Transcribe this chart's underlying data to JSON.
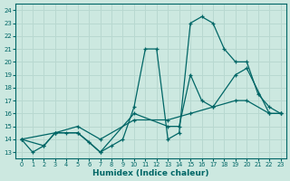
{
  "xlabel": "Humidex (Indice chaleur)",
  "ylabel": "",
  "bg_color": "#cce8e0",
  "line_color": "#006666",
  "grid_color": "#b8d8d0",
  "xlim": [
    -0.5,
    23.5
  ],
  "ylim": [
    12.5,
    24.5
  ],
  "xticks": [
    0,
    1,
    2,
    3,
    4,
    5,
    6,
    7,
    8,
    9,
    10,
    11,
    12,
    13,
    14,
    15,
    16,
    17,
    18,
    19,
    20,
    21,
    22,
    23
  ],
  "yticks": [
    13,
    14,
    15,
    16,
    17,
    18,
    19,
    20,
    21,
    22,
    23,
    24
  ],
  "series1_x": [
    0,
    1,
    2,
    3,
    4,
    5,
    6,
    7,
    8,
    9,
    10,
    11,
    12,
    13,
    14,
    15,
    16,
    17,
    18,
    19,
    20,
    21,
    22,
    23
  ],
  "series1_y": [
    14,
    13,
    13.5,
    14.5,
    14.5,
    14.5,
    13.8,
    13,
    13.5,
    14,
    16.5,
    21,
    21,
    14,
    14.5,
    23,
    23.5,
    23,
    21,
    20,
    20,
    17.5,
    16.5,
    16
  ],
  "series2_x": [
    0,
    2,
    3,
    5,
    7,
    10,
    13,
    14,
    15,
    16,
    17,
    19,
    20,
    22,
    23
  ],
  "series2_y": [
    14,
    13.5,
    14.5,
    14.5,
    13,
    16,
    15,
    15,
    19,
    17,
    16.5,
    19,
    19.5,
    16,
    16
  ],
  "series3_x": [
    0,
    3,
    5,
    7,
    10,
    13,
    15,
    17,
    19,
    20,
    22,
    23
  ],
  "series3_y": [
    14,
    14.5,
    15,
    14,
    15.5,
    15.5,
    16,
    16.5,
    17,
    17,
    16,
    16
  ]
}
